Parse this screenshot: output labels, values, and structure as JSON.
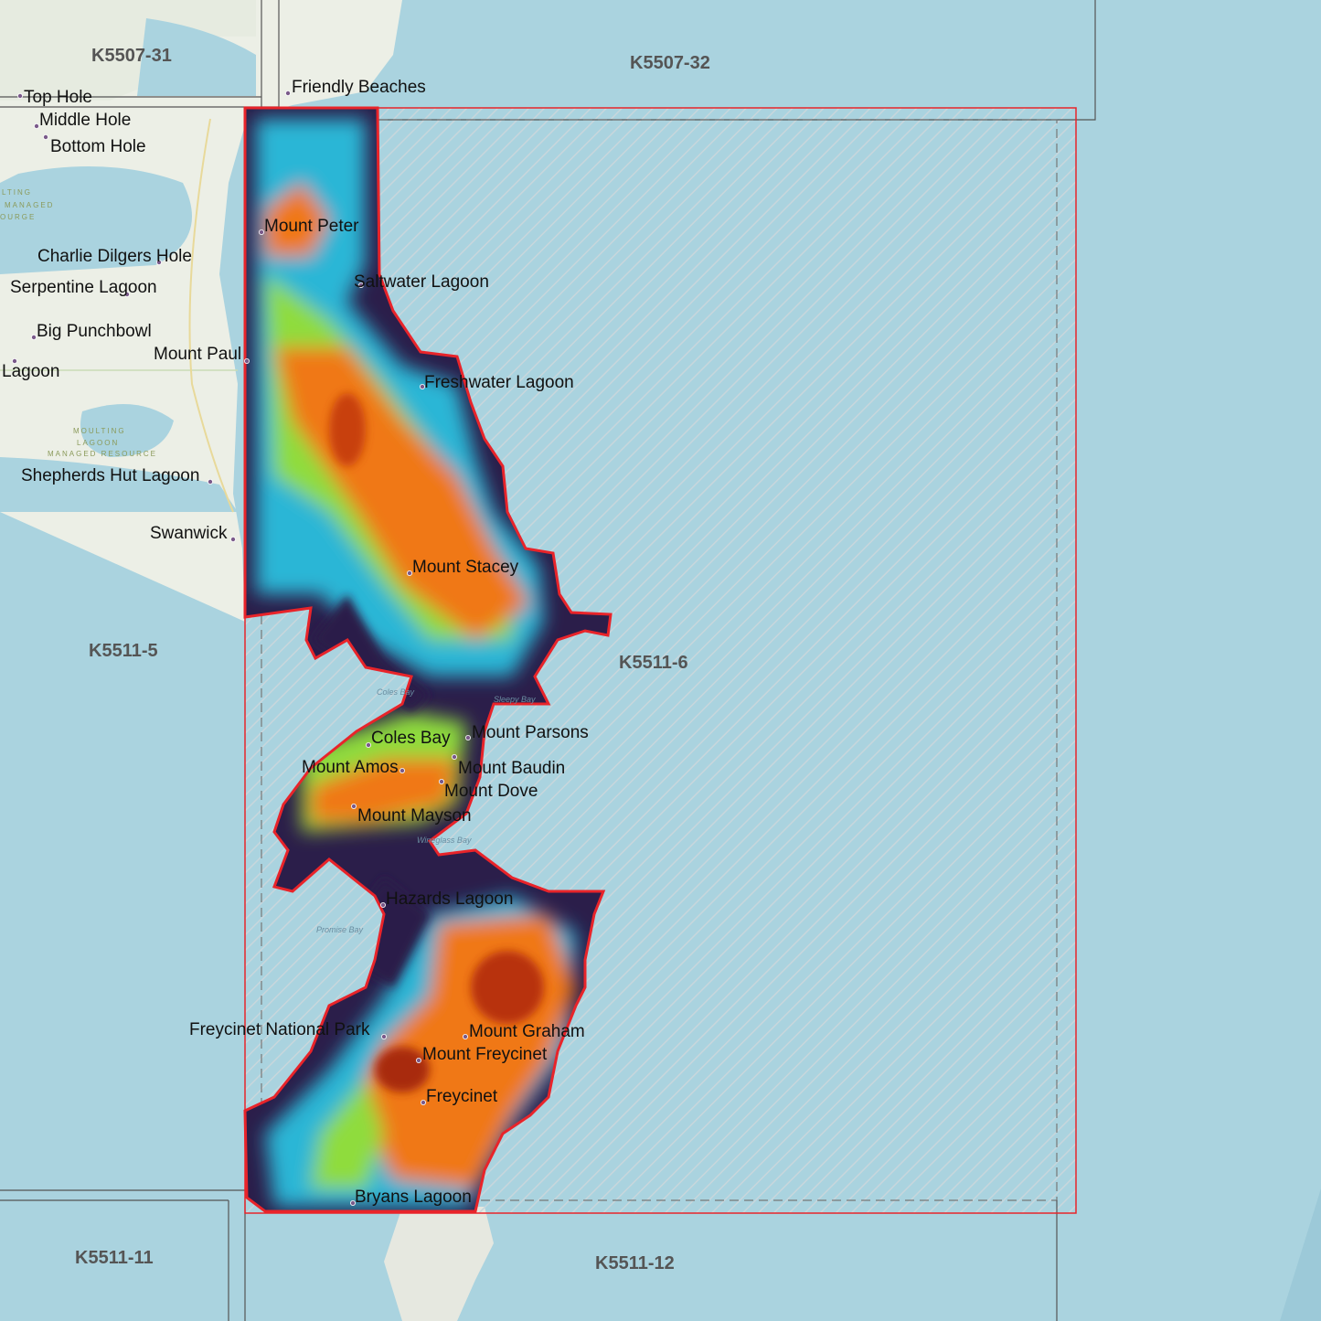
{
  "map": {
    "colors": {
      "water": "#aad3df",
      "land": "#ecefe6",
      "extent": "#e8242a",
      "dem_low": "#2b1e4a",
      "dem_mid": "#29b6d6",
      "dem_green": "#8fdc3c",
      "dem_high": "#f07818",
      "dem_peak": "#b8300c"
    },
    "tiles": [
      {
        "id": "K5507-31"
      },
      {
        "id": "K5507-32"
      },
      {
        "id": "K5511-5"
      },
      {
        "id": "K5511-6"
      },
      {
        "id": "K5511-11"
      },
      {
        "id": "K5511-12"
      }
    ],
    "places": [
      "Top Hole",
      "Middle Hole",
      "Bottom Hole",
      "Friendly Beaches",
      "Mount Peter",
      "Charlie Dilgers Hole",
      "Serpentine Lagoon",
      "Saltwater Lagoon",
      "Big Punchbowl",
      "Mount Paul",
      "Lagoon",
      "Freshwater Lagoon",
      "Shepherds Hut Lagoon",
      "Swanwick",
      "Mount Stacey",
      "Coles Bay",
      "Mount Parsons",
      "Mount Amos",
      "Mount Baudin",
      "Mount Dove",
      "Mount Mayson",
      "Hazards Lagoon",
      "Freycinet National Park",
      "Mount Graham",
      "Mount Freycinet",
      "Freycinet",
      "Bryans Lagoon"
    ],
    "water_labels": [
      "Coles Bay",
      "Wineglass Bay",
      "Promise Bay",
      "Sleepy Bay"
    ],
    "reserve_labels": [
      "LTING",
      "MANAGED",
      "OURGE",
      "MOULTING",
      "LAGOON",
      "MANAGED RESOURCE"
    ]
  }
}
